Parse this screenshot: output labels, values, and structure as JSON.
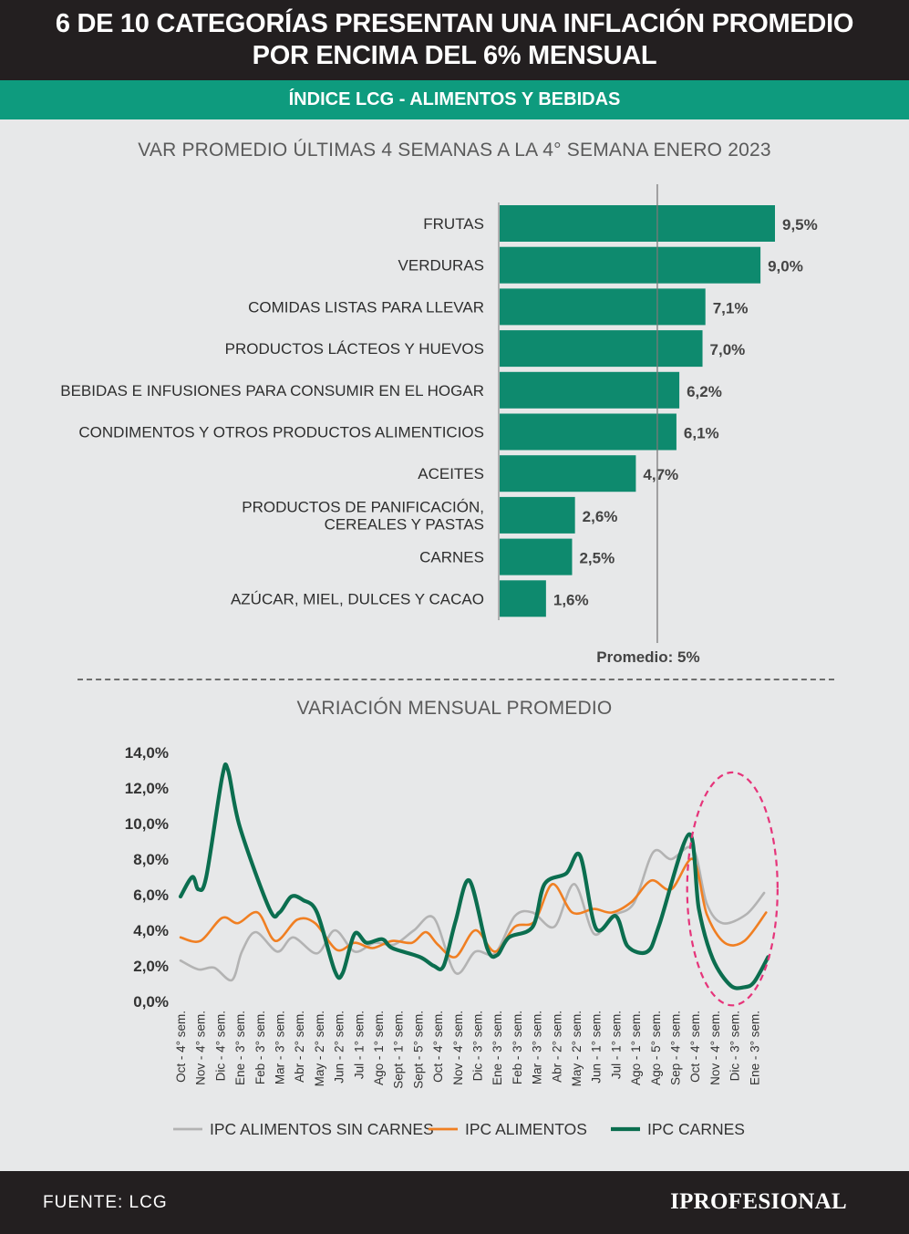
{
  "header": {
    "title_line1": "6 DE 10 CATEGORÍAS PRESENTAN UNA INFLACIÓN PROMEDIO",
    "title_line2": "POR ENCIMA DEL 6% MENSUAL",
    "subtitle": "ÍNDICE LCG - ALIMENTOS Y BEBIDAS"
  },
  "footer": {
    "source": "FUENTE: LCG",
    "brand": "IPROFESIONAL"
  },
  "colors": {
    "header_bg": "#231f20",
    "accent": "#0e9b7e",
    "bar": "#0e8a6e",
    "background": "#e7e8e9",
    "ipc_sin_carnes": "#b3b3b3",
    "ipc_alimentos": "#f07f22",
    "ipc_carnes": "#0b6e4f",
    "highlight_ellipse": "#e6347a"
  },
  "chart_data": [
    {
      "type": "bar",
      "orientation": "horizontal",
      "title": "VAR PROMEDIO ÚLTIMAS 4 SEMANAS A LA 4° SEMANA ENERO 2023",
      "categories": [
        [
          "FRUTAS"
        ],
        [
          "VERDURAS"
        ],
        [
          "COMIDAS LISTAS PARA LLEVAR"
        ],
        [
          "PRODUCTOS LÁCTEOS Y HUEVOS"
        ],
        [
          "BEBIDAS E INFUSIONES PARA CONSUMIR EN EL HOGAR"
        ],
        [
          "CONDIMENTOS Y OTROS PRODUCTOS ALIMENTICIOS"
        ],
        [
          "ACEITES"
        ],
        [
          "PRODUCTOS DE PANIFICACIÓN,",
          "CEREALES Y PASTAS"
        ],
        [
          "CARNES"
        ],
        [
          "AZÚCAR, MIEL, DULCES Y CACAO"
        ]
      ],
      "values": [
        9.5,
        9.0,
        7.1,
        7.0,
        6.2,
        6.1,
        4.7,
        2.6,
        2.5,
        1.6
      ],
      "value_labels": [
        "9,5%",
        "9,0%",
        "7,1%",
        "7,0%",
        "6,2%",
        "6,1%",
        "4,7%",
        "2,6%",
        "2,5%",
        "1,6%"
      ],
      "reference_line": {
        "value": 5,
        "label": "Promedio: 5%"
      },
      "xlim": [
        0,
        9.5
      ]
    },
    {
      "type": "line",
      "title": "VARIACIÓN MENSUAL PROMEDIO",
      "ylim": [
        0,
        14
      ],
      "yticks": [
        "0,0%",
        "2,0%",
        "4,0%",
        "6,0%",
        "8,0%",
        "10,0%",
        "12,0%",
        "14,0%"
      ],
      "ytick_values": [
        0,
        2,
        4,
        6,
        8,
        10,
        12,
        14
      ],
      "xtick_labels": [
        "Oct - 4° sem.",
        "Nov - 4° sem.",
        "Dic - 4° sem.",
        "Ene - 3° sem.",
        "Feb - 3° sem.",
        "Mar - 3° sem.",
        "Abr - 2° sem.",
        "May - 2° sem.",
        "Jun - 2° sem.",
        "Jul - 1° sem.",
        "Ago - 1° sem.",
        "Sept - 1° sem.",
        "Sept - 5° sem.",
        "Oct - 4° sem.",
        "Nov - 4° sem.",
        "Dic - 3° sem.",
        "Ene - 3° sem.",
        "Feb - 3° sem.",
        "Mar - 3° sem.",
        "Abr - 2° sem.",
        "May - 2° sem.",
        "Jun - 1° sem.",
        "Jul - 1° sem.",
        "Ago - 1° sem.",
        "Ago - 5° sem.",
        "Sep - 4° sem.",
        "Oct - 4° sem.",
        "Nov - 4° sem.",
        "Dic - 3° sem.",
        "Ene - 3° sem."
      ],
      "legend_position": "bottom",
      "series": [
        {
          "name": "IPC ALIMENTOS SIN CARNES",
          "values": [
            2.3,
            1.8,
            1.9,
            1.2,
            2.8,
            3.9,
            2.8,
            3.6,
            2.7,
            4.0,
            2.8,
            3.3,
            3.2,
            4.0,
            4.7,
            1.6,
            2.8,
            2.7,
            4.8,
            5.0,
            4.2,
            6.6,
            3.8,
            4.8,
            5.5,
            8.4,
            8.0,
            8.6,
            5.5,
            4.4,
            4.9,
            6.1
          ],
          "x": [
            0,
            0.9,
            1.7,
            2.6,
            3.1,
            3.8,
            4.9,
            5.7,
            6.9,
            7.8,
            8.8,
            9.8,
            10.8,
            11.8,
            12.8,
            13.9,
            14.9,
            15.9,
            16.9,
            17.8,
            18.9,
            19.9,
            20.9,
            21.8,
            22.9,
            23.9,
            24.8,
            25.9,
            26.6,
            27.4,
            28.6,
            29.5
          ]
        },
        {
          "name": "IPC ALIMENTOS",
          "values": [
            3.6,
            3.4,
            4.7,
            4.4,
            5.0,
            3.4,
            4.6,
            4.4,
            2.9,
            3.3,
            3.0,
            3.4,
            3.3,
            3.9,
            3.2,
            2.5,
            4.0,
            2.8,
            4.2,
            4.5,
            6.6,
            5.0,
            5.2,
            5.0,
            5.6,
            6.8,
            6.3,
            8.0,
            4.9,
            3.3,
            3.4,
            5.0
          ],
          "x": [
            0,
            1.0,
            2.1,
            2.9,
            3.9,
            4.8,
            5.9,
            6.8,
            7.9,
            8.8,
            9.7,
            10.7,
            11.7,
            12.4,
            13.0,
            13.9,
            14.9,
            15.9,
            16.9,
            17.9,
            18.8,
            19.8,
            20.9,
            21.8,
            22.8,
            23.8,
            24.8,
            25.9,
            26.6,
            27.5,
            28.5,
            29.6
          ]
        },
        {
          "name": "IPC CARNES",
          "values": [
            5.9,
            7.0,
            6.3,
            7.0,
            12.6,
            13.0,
            9.8,
            5.2,
            5.0,
            5.9,
            5.7,
            5.0,
            1.7,
            1.6,
            3.8,
            3.3,
            3.5,
            3.0,
            2.5,
            2.0,
            2.0,
            4.5,
            6.8,
            3.0,
            2.6,
            3.6,
            4.2,
            6.6,
            7.2,
            8.2,
            4.1,
            4.8,
            3.1,
            2.8,
            4.3,
            9.4,
            5.2,
            2.4,
            0.9,
            0.8,
            1.1,
            2.5
          ],
          "x": [
            0,
            0.6,
            0.9,
            1.3,
            2.1,
            2.4,
            3.0,
            4.5,
            5.0,
            5.6,
            6.2,
            6.9,
            7.8,
            8.2,
            8.8,
            9.4,
            10.2,
            10.7,
            12.1,
            12.8,
            13.3,
            13.9,
            14.6,
            15.5,
            16.0,
            16.6,
            17.8,
            18.4,
            19.5,
            20.2,
            21.0,
            22.0,
            22.6,
            23.6,
            24.2,
            25.7,
            26.2,
            26.9,
            27.8,
            28.5,
            29.0,
            29.7
          ]
        }
      ],
      "annotations": [
        {
          "type": "ellipse-highlight",
          "x_range": [
            25.7,
            29.9
          ],
          "y_range": [
            0.6,
            9.8
          ]
        }
      ]
    }
  ]
}
